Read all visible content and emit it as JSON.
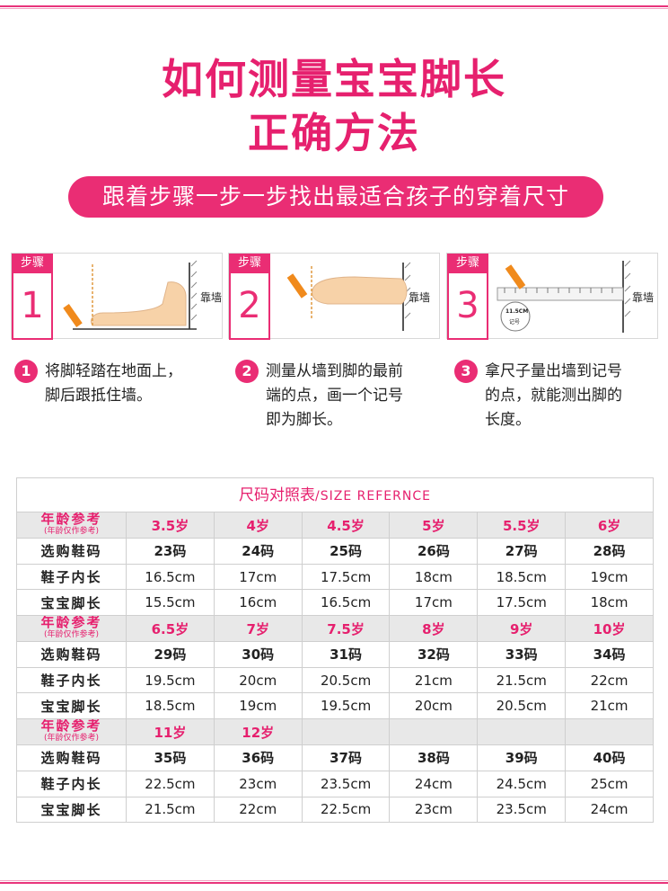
{
  "title": {
    "line1": "如何测量宝宝脚长",
    "line2": "正确方法"
  },
  "banner": "跟着步骤一步一步找出最适合孩子的穿着尺寸",
  "steps": [
    {
      "tag": "步骤",
      "num": "1",
      "wall": "靠墙",
      "circle": "1",
      "text_lines": [
        "将脚轻踏在地面上，",
        "脚后跟抵住墙。"
      ]
    },
    {
      "tag": "步骤",
      "num": "2",
      "wall": "靠墙",
      "circle": "2",
      "text_lines": [
        "测量从墙到脚的最前",
        "端的点，画一个记号",
        "即为脚长。"
      ]
    },
    {
      "tag": "步骤",
      "num": "3",
      "wall": "靠墙",
      "circle": "3",
      "ruler_mark_top": "11.5CM",
      "ruler_mark_bottom": "记号",
      "text_lines": [
        "拿尺子量出墙到记号",
        "的点，就能测出脚的",
        "长度。"
      ]
    }
  ],
  "table": {
    "header_cn": "尺码对照表",
    "header_en": "/SIZE REFERNCE",
    "row_labels": {
      "age": "年龄参考",
      "age_note": "(年龄仅作参考)",
      "code": "选购鞋码",
      "inner": "鞋子内长",
      "foot": "宝宝脚长"
    },
    "groups": [
      {
        "ages": [
          "3.5岁",
          "4岁",
          "4.5岁",
          "5岁",
          "5.5岁",
          "6岁"
        ],
        "codes": [
          "23码",
          "24码",
          "25码",
          "26码",
          "27码",
          "28码"
        ],
        "inner": [
          "16.5cm",
          "17cm",
          "17.5cm",
          "18cm",
          "18.5cm",
          "19cm"
        ],
        "foot": [
          "15.5cm",
          "16cm",
          "16.5cm",
          "17cm",
          "17.5cm",
          "18cm"
        ]
      },
      {
        "ages": [
          "6.5岁",
          "7岁",
          "7.5岁",
          "8岁",
          "9岁",
          "10岁"
        ],
        "codes": [
          "29码",
          "30码",
          "31码",
          "32码",
          "33码",
          "34码"
        ],
        "inner": [
          "19.5cm",
          "20cm",
          "20.5cm",
          "21cm",
          "21.5cm",
          "22cm"
        ],
        "foot": [
          "18.5cm",
          "19cm",
          "19.5cm",
          "20cm",
          "20.5cm",
          "21cm"
        ]
      },
      {
        "ages": [
          "11岁",
          "12岁",
          "",
          "",
          "",
          ""
        ],
        "codes": [
          "35码",
          "36码",
          "37码",
          "38码",
          "39码",
          "40码"
        ],
        "inner": [
          "22.5cm",
          "23cm",
          "23.5cm",
          "24cm",
          "24.5cm",
          "25cm"
        ],
        "foot": [
          "21.5cm",
          "22cm",
          "22.5cm",
          "23cm",
          "23.5cm",
          "24cm"
        ]
      }
    ]
  },
  "colors": {
    "accent": "#ea2d74",
    "title": "#e6206e",
    "age_row_bg": "#e8e8e8"
  }
}
